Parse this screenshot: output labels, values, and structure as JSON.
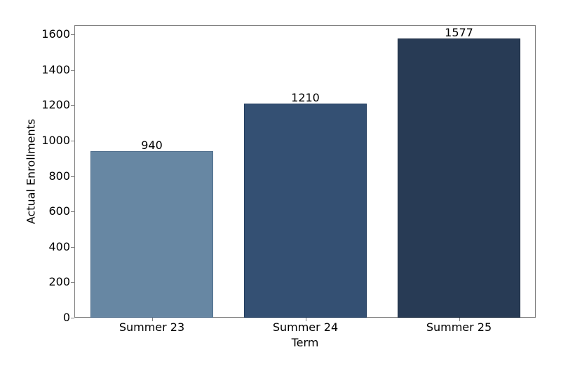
{
  "chart_data": {
    "type": "bar",
    "title": "",
    "xlabel": "Term",
    "ylabel": "Actual Enrollments",
    "categories": [
      "Summer 23",
      "Summer 24",
      "Summer 25"
    ],
    "values": [
      940,
      1210,
      1577
    ],
    "data_labels": [
      "940",
      "1210",
      "1577"
    ],
    "colors": [
      "#6787a3",
      "#345073",
      "#283b55"
    ],
    "edge_colors": [
      "#4f6e8c",
      "#233e60",
      "#1a2a40"
    ],
    "ylim": [
      0,
      1650
    ],
    "yticks": [
      0,
      200,
      400,
      600,
      800,
      1000,
      1200,
      1400,
      1600
    ],
    "ytick_labels": [
      "0",
      "200",
      "400",
      "600",
      "800",
      "1000",
      "1200",
      "1400",
      "1600"
    ],
    "grid": false,
    "legend": null
  }
}
